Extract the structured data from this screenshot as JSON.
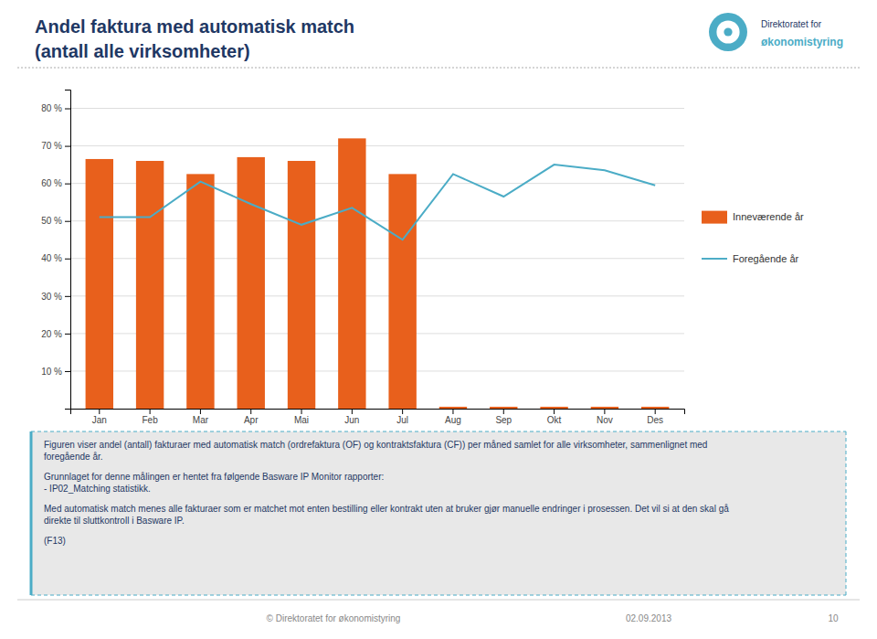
{
  "chart_data": {
    "type": "bar",
    "title": "Andel faktura med automatisk match",
    "subtitle": "(antall alle virksomheter)",
    "categories": [
      "Jan",
      "Feb",
      "Mar",
      "Apr",
      "Mai",
      "Jun",
      "Jul",
      "Aug",
      "Sep",
      "Okt",
      "Nov",
      "Des"
    ],
    "series": [
      {
        "name": "Inneværende år",
        "type": "bar",
        "color": "#E8601C",
        "values": [
          66.5,
          66.0,
          62.5,
          67.0,
          66.0,
          72.0,
          62.5,
          0.5,
          0.5,
          0.5,
          0.5,
          0.5
        ]
      },
      {
        "name": "Foregående år",
        "type": "line",
        "color": "#4BACC6",
        "values": [
          51.0,
          51.0,
          60.5,
          54.5,
          49.0,
          53.5,
          45.0,
          62.5,
          56.5,
          65.0,
          63.5,
          59.5
        ]
      }
    ],
    "ylim": [
      0,
      85
    ],
    "yticks": [
      {
        "value": 10,
        "label": "10 %"
      },
      {
        "value": 20,
        "label": "20 %"
      },
      {
        "value": 30,
        "label": "30 %"
      },
      {
        "value": 40,
        "label": "40 %"
      },
      {
        "value": 50,
        "label": "50 %"
      },
      {
        "value": 60,
        "label": "60 %"
      },
      {
        "value": 70,
        "label": "70 %"
      },
      {
        "value": 80,
        "label": "80 %"
      }
    ],
    "grid": true,
    "legend": "right",
    "annotations": [
      "Figuren viser andel (antall) fakturaer med automatisk match (ordrefaktura (OF) og kontraktsfaktura (CF)) per måned samlet for alle virksomheter, sammenlignet med\nforegående år.",
      "Grunnlaget for denne målingen er hentet fra følgende Basware IP Monitor rapporter:\n- IP02_Matching statistikk.",
      "Med automatisk match menes alle fakturaer som er matchet mot enten bestilling eller kontrakt uten at bruker gjør manuelle endringer i prosessen. Det vil si at den skal gå\ndirekte til sluttkontroll i Basware IP.",
      "(F13)",
      "© Direktoratet for økonomistyring",
      "02.09.2013",
      "10",
      "Direktoratet for",
      "økonomistyring"
    ]
  }
}
